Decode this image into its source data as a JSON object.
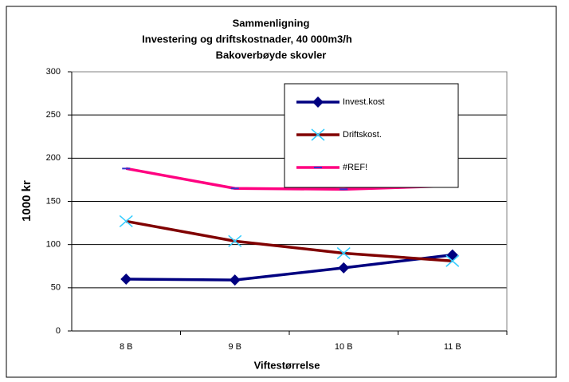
{
  "chart_data": {
    "type": "line",
    "title": [
      "Sammenligning",
      "Investering og driftskostnader, 40 000m3/h",
      "Bakoverbøyde skovler"
    ],
    "x_label": "Viftestørrelse",
    "y_label": "1000 kr",
    "categories": [
      "8 B",
      "9 B",
      "10 B",
      "11 B"
    ],
    "series": [
      {
        "name": "Invest.kost",
        "color": "#000080",
        "marker": "diamond",
        "marker_color": "#000080",
        "values": [
          60,
          59,
          73,
          88
        ]
      },
      {
        "name": "Driftskost.",
        "color": "#800000",
        "marker": "x",
        "marker_color": "#33ccff",
        "values": [
          127,
          104,
          90,
          81
        ]
      },
      {
        "name": "#REF!",
        "color": "#ff0080",
        "marker": "dash",
        "marker_color": "#3333cc",
        "values": [
          188,
          165,
          164,
          168
        ]
      }
    ],
    "ylim": [
      0,
      300
    ],
    "yticks": [
      0,
      50,
      100,
      150,
      200,
      250,
      300
    ],
    "grid": true
  }
}
